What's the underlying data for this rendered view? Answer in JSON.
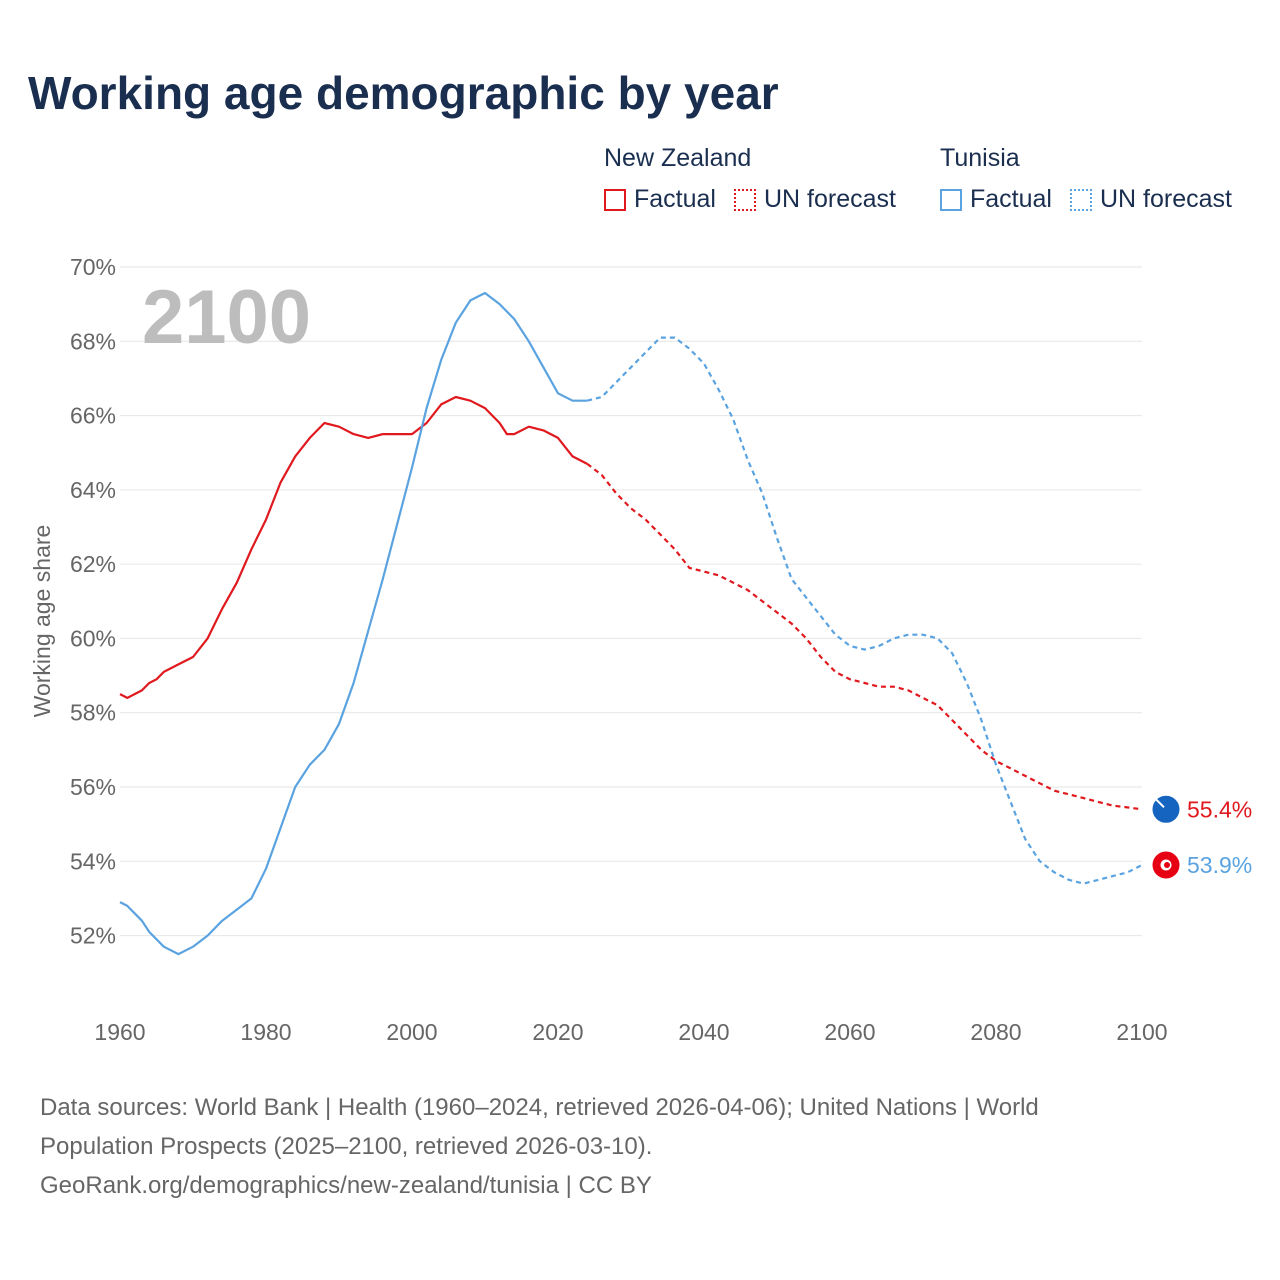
{
  "title": "Working age demographic by year",
  "legend": {
    "groups": [
      {
        "country": "New Zealand",
        "factual": "Factual",
        "forecast": "UN forecast",
        "color": "#e0191e"
      },
      {
        "country": "Tunisia",
        "factual": "Factual",
        "forecast": "UN forecast",
        "color": "#5aa3e0"
      }
    ]
  },
  "sources": {
    "line1": "Data sources: World Bank | Health (1960–2024, retrieved 2026-04-06); United Nations | World",
    "line2": "Population Prospects (2025–2100, retrieved 2026-03-10).",
    "line3": "GeoRank.org/demographics/new-zealand/tunisia | CC BY"
  },
  "chart_data": {
    "type": "line",
    "title": "Working age demographic by year",
    "ylabel": "Working age share",
    "xlabel": "",
    "year_display": "2100",
    "xlim": [
      1960,
      2100
    ],
    "ylim": [
      50.4,
      70
    ],
    "x_ticks": [
      1960,
      1980,
      2000,
      2020,
      2040,
      2060,
      2080,
      2100
    ],
    "y_ticks": [
      52,
      54,
      56,
      58,
      60,
      62,
      64,
      66,
      68,
      70
    ],
    "y_tick_labels": [
      "52%",
      "54%",
      "56%",
      "58%",
      "60%",
      "62%",
      "64%",
      "66%",
      "68%",
      "70%"
    ],
    "factual_end_year": 2024,
    "series": [
      {
        "name": "New Zealand",
        "color": "#e0191e",
        "end_label": "55.4%",
        "flag_color": "#1565c0",
        "points": [
          [
            1960,
            58.5
          ],
          [
            1961,
            58.4
          ],
          [
            1962,
            58.5
          ],
          [
            1963,
            58.6
          ],
          [
            1964,
            58.8
          ],
          [
            1965,
            58.9
          ],
          [
            1966,
            59.1
          ],
          [
            1968,
            59.3
          ],
          [
            1970,
            59.5
          ],
          [
            1972,
            60.0
          ],
          [
            1974,
            60.8
          ],
          [
            1976,
            61.5
          ],
          [
            1978,
            62.4
          ],
          [
            1980,
            63.2
          ],
          [
            1982,
            64.2
          ],
          [
            1984,
            64.9
          ],
          [
            1986,
            65.4
          ],
          [
            1988,
            65.8
          ],
          [
            1990,
            65.7
          ],
          [
            1992,
            65.5
          ],
          [
            1994,
            65.4
          ],
          [
            1996,
            65.5
          ],
          [
            1998,
            65.5
          ],
          [
            2000,
            65.5
          ],
          [
            2002,
            65.8
          ],
          [
            2004,
            66.3
          ],
          [
            2006,
            66.5
          ],
          [
            2008,
            66.4
          ],
          [
            2010,
            66.2
          ],
          [
            2012,
            65.8
          ],
          [
            2013,
            65.5
          ],
          [
            2014,
            65.5
          ],
          [
            2016,
            65.7
          ],
          [
            2018,
            65.6
          ],
          [
            2020,
            65.4
          ],
          [
            2022,
            64.9
          ],
          [
            2024,
            64.7
          ],
          [
            2026,
            64.4
          ],
          [
            2028,
            63.9
          ],
          [
            2030,
            63.5
          ],
          [
            2032,
            63.2
          ],
          [
            2034,
            62.8
          ],
          [
            2036,
            62.4
          ],
          [
            2038,
            61.9
          ],
          [
            2040,
            61.8
          ],
          [
            2042,
            61.7
          ],
          [
            2044,
            61.5
          ],
          [
            2046,
            61.3
          ],
          [
            2048,
            61.0
          ],
          [
            2050,
            60.7
          ],
          [
            2052,
            60.4
          ],
          [
            2054,
            60.0
          ],
          [
            2056,
            59.5
          ],
          [
            2058,
            59.1
          ],
          [
            2060,
            58.9
          ],
          [
            2062,
            58.8
          ],
          [
            2064,
            58.7
          ],
          [
            2066,
            58.7
          ],
          [
            2068,
            58.6
          ],
          [
            2070,
            58.4
          ],
          [
            2072,
            58.2
          ],
          [
            2074,
            57.8
          ],
          [
            2076,
            57.4
          ],
          [
            2078,
            57.0
          ],
          [
            2080,
            56.7
          ],
          [
            2082,
            56.5
          ],
          [
            2084,
            56.3
          ],
          [
            2086,
            56.1
          ],
          [
            2088,
            55.9
          ],
          [
            2090,
            55.8
          ],
          [
            2092,
            55.7
          ],
          [
            2094,
            55.6
          ],
          [
            2096,
            55.5
          ],
          [
            2098,
            55.45
          ],
          [
            2100,
            55.4
          ]
        ]
      },
      {
        "name": "Tunisia",
        "color": "#5aa3e0",
        "end_label": "53.9%",
        "flag_color": "#e70013",
        "points": [
          [
            1960,
            52.9
          ],
          [
            1961,
            52.8
          ],
          [
            1962,
            52.6
          ],
          [
            1963,
            52.4
          ],
          [
            1964,
            52.1
          ],
          [
            1966,
            51.7
          ],
          [
            1968,
            51.5
          ],
          [
            1970,
            51.7
          ],
          [
            1972,
            52.0
          ],
          [
            1974,
            52.4
          ],
          [
            1976,
            52.7
          ],
          [
            1978,
            53.0
          ],
          [
            1980,
            53.8
          ],
          [
            1982,
            54.9
          ],
          [
            1984,
            56.0
          ],
          [
            1986,
            56.6
          ],
          [
            1988,
            57.0
          ],
          [
            1990,
            57.7
          ],
          [
            1992,
            58.8
          ],
          [
            1994,
            60.2
          ],
          [
            1996,
            61.6
          ],
          [
            1998,
            63.1
          ],
          [
            2000,
            64.6
          ],
          [
            2002,
            66.2
          ],
          [
            2004,
            67.5
          ],
          [
            2006,
            68.5
          ],
          [
            2008,
            69.1
          ],
          [
            2010,
            69.3
          ],
          [
            2012,
            69.0
          ],
          [
            2014,
            68.6
          ],
          [
            2016,
            68.0
          ],
          [
            2018,
            67.3
          ],
          [
            2020,
            66.6
          ],
          [
            2022,
            66.4
          ],
          [
            2024,
            66.4
          ],
          [
            2026,
            66.5
          ],
          [
            2028,
            66.9
          ],
          [
            2030,
            67.3
          ],
          [
            2032,
            67.7
          ],
          [
            2034,
            68.1
          ],
          [
            2036,
            68.1
          ],
          [
            2038,
            67.8
          ],
          [
            2040,
            67.4
          ],
          [
            2042,
            66.7
          ],
          [
            2044,
            65.9
          ],
          [
            2046,
            64.8
          ],
          [
            2048,
            63.9
          ],
          [
            2050,
            62.7
          ],
          [
            2052,
            61.6
          ],
          [
            2054,
            61.1
          ],
          [
            2056,
            60.6
          ],
          [
            2058,
            60.1
          ],
          [
            2060,
            59.8
          ],
          [
            2062,
            59.7
          ],
          [
            2064,
            59.8
          ],
          [
            2066,
            60.0
          ],
          [
            2068,
            60.1
          ],
          [
            2070,
            60.1
          ],
          [
            2072,
            60.0
          ],
          [
            2074,
            59.6
          ],
          [
            2076,
            58.8
          ],
          [
            2078,
            57.8
          ],
          [
            2080,
            56.6
          ],
          [
            2082,
            55.6
          ],
          [
            2084,
            54.6
          ],
          [
            2086,
            54.0
          ],
          [
            2088,
            53.7
          ],
          [
            2090,
            53.5
          ],
          [
            2092,
            53.4
          ],
          [
            2094,
            53.5
          ],
          [
            2096,
            53.6
          ],
          [
            2098,
            53.7
          ],
          [
            2100,
            53.9
          ]
        ]
      }
    ]
  }
}
